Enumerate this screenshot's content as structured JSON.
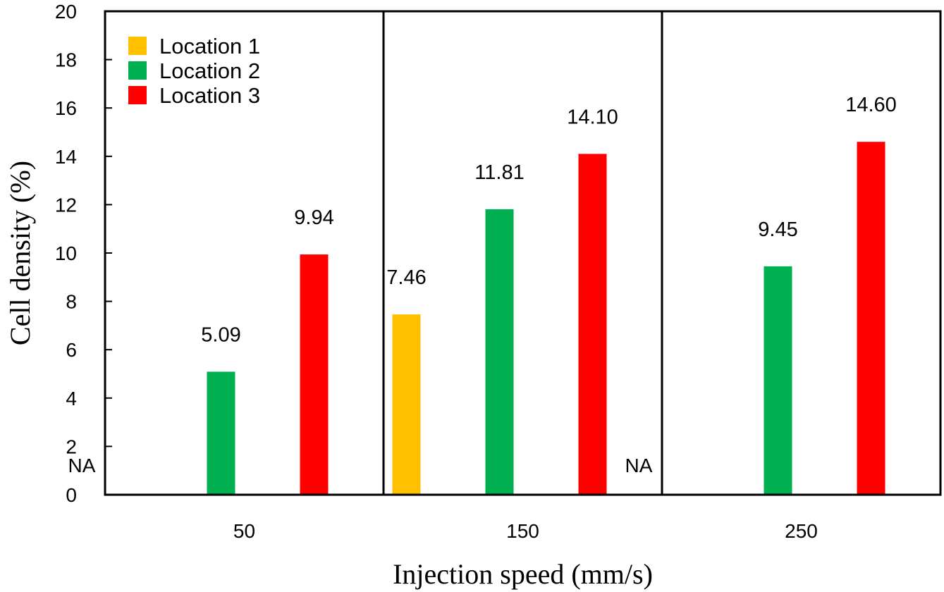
{
  "chart_data": {
    "type": "bar",
    "title": "",
    "xlabel": "Injection speed (mm/s)",
    "ylabel": "Cell density (%)",
    "ylim": [
      0,
      20
    ],
    "yticks": [
      "0",
      "2",
      "4",
      "6",
      "8",
      "10",
      "12",
      "14",
      "16",
      "18",
      "20"
    ],
    "categories": [
      "50",
      "150",
      "250"
    ],
    "grid": false,
    "legend_position": "top-left",
    "series": [
      {
        "name": "Location 1",
        "color": "#FFC000",
        "values": [
          null,
          7.46,
          null
        ],
        "labels": [
          "",
          "7.46",
          ""
        ]
      },
      {
        "name": "Location 2",
        "color": "#00B050",
        "values": [
          5.09,
          11.81,
          9.45
        ],
        "labels": [
          "5.09",
          "11.81",
          "9.45"
        ]
      },
      {
        "name": "Location 3",
        "color": "#FF0000",
        "values": [
          9.94,
          14.1,
          14.6
        ],
        "labels": [
          "9.94",
          "14.10",
          "14.60"
        ]
      }
    ],
    "annotations": [
      {
        "category": "50",
        "text": "NA"
      },
      {
        "category": "250",
        "text": "NA"
      }
    ]
  }
}
